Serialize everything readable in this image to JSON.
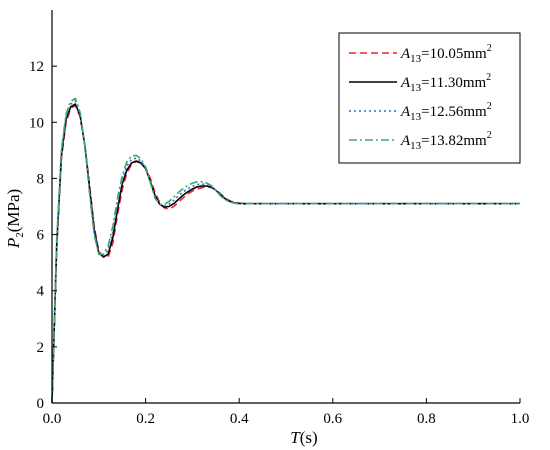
{
  "chart_data": {
    "type": "line",
    "xlabel": {
      "var": "T",
      "unit": "(s)"
    },
    "ylabel": {
      "var": "P",
      "sub": "2",
      "unit": "(MPa)"
    },
    "xlim": [
      0,
      1.0
    ],
    "ylim": [
      0,
      14
    ],
    "xticks": [
      "0.0",
      "0.2",
      "0.4",
      "0.6",
      "0.8",
      "1.0"
    ],
    "yticks": [
      "0",
      "2",
      "4",
      "6",
      "8",
      "10",
      "12"
    ],
    "xtick_values": [
      0,
      0.2,
      0.4,
      0.6,
      0.8,
      1.0
    ],
    "ytick_values": [
      0,
      2,
      4,
      6,
      8,
      10,
      12
    ],
    "grid": false,
    "legend_position": "top-right",
    "series": [
      {
        "name": "A13=10.05mm2",
        "label": {
          "var": "A",
          "sub": "13",
          "eq": "=10.05mm",
          "sup": "2"
        },
        "color": "#e8262b",
        "dash": "dashed",
        "x": [
          0,
          0.01,
          0.02,
          0.03,
          0.04,
          0.05,
          0.06,
          0.07,
          0.08,
          0.09,
          0.1,
          0.11,
          0.12,
          0.13,
          0.14,
          0.15,
          0.16,
          0.17,
          0.18,
          0.19,
          0.2,
          0.21,
          0.22,
          0.23,
          0.24,
          0.25,
          0.26,
          0.27,
          0.28,
          0.29,
          0.3,
          0.31,
          0.32,
          0.33,
          0.34,
          0.35,
          0.36,
          0.37,
          0.38,
          0.39,
          0.4,
          0.41,
          0.42,
          0.43,
          0.45,
          0.5,
          0.6,
          0.7,
          0.8,
          0.9,
          1.0
        ],
        "y": [
          0,
          5.5,
          8.7,
          10.0,
          10.5,
          10.6,
          10.2,
          9.2,
          7.8,
          6.3,
          5.4,
          5.2,
          5.2,
          5.7,
          6.7,
          7.6,
          8.2,
          8.5,
          8.6,
          8.55,
          8.4,
          8.0,
          7.5,
          7.15,
          6.95,
          6.9,
          7.0,
          7.15,
          7.3,
          7.45,
          7.55,
          7.62,
          7.67,
          7.7,
          7.68,
          7.6,
          7.45,
          7.3,
          7.2,
          7.15,
          7.12,
          7.11,
          7.1,
          7.1,
          7.1,
          7.1,
          7.1,
          7.1,
          7.1,
          7.1,
          7.1
        ]
      },
      {
        "name": "A13=11.30mm2",
        "label": {
          "var": "A",
          "sub": "13",
          "eq": "=11.30mm",
          "sup": "2"
        },
        "color": "#000000",
        "dash": "solid",
        "x": [
          0,
          0.01,
          0.02,
          0.03,
          0.04,
          0.05,
          0.06,
          0.07,
          0.08,
          0.09,
          0.1,
          0.11,
          0.12,
          0.13,
          0.14,
          0.15,
          0.16,
          0.17,
          0.18,
          0.19,
          0.2,
          0.21,
          0.22,
          0.23,
          0.24,
          0.25,
          0.26,
          0.27,
          0.28,
          0.29,
          0.3,
          0.31,
          0.32,
          0.33,
          0.34,
          0.35,
          0.36,
          0.37,
          0.38,
          0.39,
          0.4,
          0.41,
          0.42,
          0.43,
          0.45,
          0.5,
          0.6,
          0.7,
          0.8,
          0.9,
          1.0
        ],
        "y": [
          0,
          5.6,
          8.8,
          10.1,
          10.55,
          10.65,
          10.25,
          9.2,
          7.7,
          6.2,
          5.35,
          5.2,
          5.3,
          5.9,
          6.9,
          7.8,
          8.3,
          8.55,
          8.62,
          8.55,
          8.35,
          7.9,
          7.4,
          7.08,
          6.98,
          7.0,
          7.1,
          7.25,
          7.4,
          7.52,
          7.62,
          7.7,
          7.73,
          7.73,
          7.69,
          7.58,
          7.42,
          7.28,
          7.18,
          7.13,
          7.11,
          7.1,
          7.1,
          7.1,
          7.1,
          7.1,
          7.1,
          7.1,
          7.1,
          7.1,
          7.1
        ]
      },
      {
        "name": "A13=12.56mm2",
        "label": {
          "var": "A",
          "sub": "13",
          "eq": "=12.56mm",
          "sup": "2"
        },
        "color": "#2f6fd6",
        "dash": "dotted",
        "x": [
          0,
          0.01,
          0.02,
          0.03,
          0.04,
          0.05,
          0.06,
          0.07,
          0.08,
          0.09,
          0.1,
          0.11,
          0.12,
          0.13,
          0.14,
          0.15,
          0.16,
          0.17,
          0.18,
          0.19,
          0.2,
          0.21,
          0.22,
          0.23,
          0.24,
          0.25,
          0.26,
          0.27,
          0.28,
          0.29,
          0.3,
          0.31,
          0.32,
          0.33,
          0.34,
          0.35,
          0.36,
          0.37,
          0.38,
          0.39,
          0.4,
          0.41,
          0.42,
          0.43,
          0.45,
          0.5,
          0.6,
          0.7,
          0.8,
          0.9,
          1.0
        ],
        "y": [
          0,
          5.7,
          8.9,
          10.2,
          10.65,
          10.75,
          10.3,
          9.2,
          7.6,
          6.1,
          5.3,
          5.25,
          5.45,
          6.1,
          7.1,
          7.95,
          8.45,
          8.68,
          8.72,
          8.62,
          8.38,
          7.88,
          7.35,
          7.08,
          7.02,
          7.08,
          7.22,
          7.38,
          7.52,
          7.63,
          7.72,
          7.78,
          7.8,
          7.78,
          7.72,
          7.58,
          7.4,
          7.26,
          7.17,
          7.12,
          7.1,
          7.1,
          7.1,
          7.1,
          7.1,
          7.1,
          7.1,
          7.1,
          7.1,
          7.1,
          7.1
        ]
      },
      {
        "name": "A13=13.82mm2",
        "label": {
          "var": "A",
          "sub": "13",
          "eq": "=13.82mm",
          "sup": "2"
        },
        "color": "#3aa86b",
        "dash": "dashdot",
        "x": [
          0,
          0.01,
          0.02,
          0.03,
          0.04,
          0.05,
          0.06,
          0.07,
          0.08,
          0.09,
          0.1,
          0.11,
          0.12,
          0.13,
          0.14,
          0.15,
          0.16,
          0.17,
          0.18,
          0.19,
          0.2,
          0.21,
          0.22,
          0.23,
          0.24,
          0.25,
          0.26,
          0.27,
          0.28,
          0.29,
          0.3,
          0.31,
          0.32,
          0.33,
          0.34,
          0.35,
          0.36,
          0.37,
          0.38,
          0.39,
          0.4,
          0.41,
          0.42,
          0.43,
          0.45,
          0.5,
          0.6,
          0.7,
          0.8,
          0.9,
          1.0
        ],
        "y": [
          0,
          5.8,
          9.0,
          10.3,
          10.75,
          10.85,
          10.35,
          9.2,
          7.5,
          6.0,
          5.3,
          5.3,
          5.6,
          6.3,
          7.3,
          8.1,
          8.6,
          8.8,
          8.82,
          8.7,
          8.4,
          7.85,
          7.3,
          7.08,
          7.08,
          7.18,
          7.33,
          7.5,
          7.64,
          7.75,
          7.83,
          7.88,
          7.88,
          7.84,
          7.75,
          7.58,
          7.38,
          7.24,
          7.16,
          7.12,
          7.1,
          7.1,
          7.1,
          7.1,
          7.1,
          7.1,
          7.1,
          7.1,
          7.1,
          7.1,
          7.1
        ]
      }
    ]
  }
}
